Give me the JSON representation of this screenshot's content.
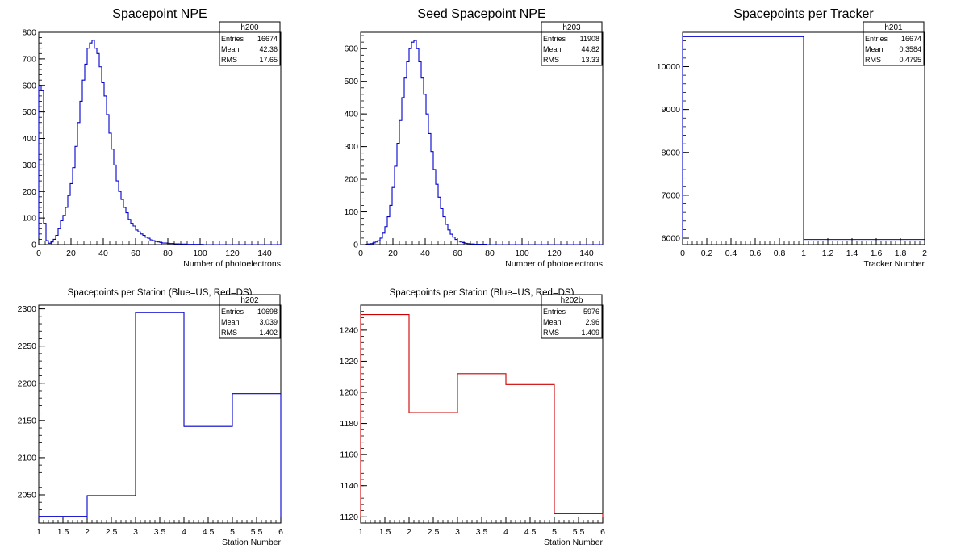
{
  "chart_data": [
    {
      "type": "histogram",
      "title": "Spacepoint NPE",
      "xlabel": "Number of photoelectrons",
      "ylabel": "",
      "xlim": [
        0,
        150
      ],
      "ylim": [
        0,
        800
      ],
      "xticks": [
        "0",
        "20",
        "40",
        "60",
        "80",
        "100",
        "120",
        "140"
      ],
      "yticks": [
        "0",
        "100",
        "200",
        "300",
        "400",
        "500",
        "600",
        "700",
        "800"
      ],
      "line_color": "#0000cc",
      "stats": {
        "name": "h200",
        "rows": [
          [
            "Entries",
            "16674"
          ],
          [
            "Mean",
            "42.36"
          ],
          [
            "RMS",
            "17.65"
          ]
        ]
      },
      "bin_width": 1.5,
      "values": [
        600,
        580,
        80,
        15,
        5,
        10,
        20,
        35,
        60,
        90,
        110,
        140,
        185,
        230,
        290,
        370,
        460,
        540,
        620,
        680,
        740,
        760,
        770,
        740,
        720,
        670,
        610,
        560,
        490,
        420,
        360,
        300,
        240,
        200,
        170,
        140,
        120,
        95,
        80,
        70,
        55,
        48,
        40,
        35,
        28,
        24,
        18,
        15,
        12,
        10,
        8,
        6,
        6,
        5,
        4,
        4,
        3,
        3,
        2,
        2,
        2,
        1,
        1,
        1,
        1,
        1,
        1,
        1,
        0,
        0,
        0,
        0,
        0,
        0,
        0,
        0,
        0,
        0,
        0,
        0,
        0,
        0,
        0,
        0,
        0,
        0,
        0,
        0,
        0,
        0,
        0,
        0,
        0,
        0,
        0,
        0,
        0,
        0,
        0,
        0
      ]
    },
    {
      "type": "histogram",
      "title": "Seed Spacepoint NPE",
      "xlabel": "Number of photoelectrons",
      "ylabel": "",
      "xlim": [
        0,
        150
      ],
      "ylim": [
        0,
        650
      ],
      "xticks": [
        "0",
        "20",
        "40",
        "60",
        "80",
        "100",
        "120",
        "140"
      ],
      "yticks": [
        "0",
        "100",
        "200",
        "300",
        "400",
        "500",
        "600"
      ],
      "line_color": "#0000cc",
      "stats": {
        "name": "h203",
        "rows": [
          [
            "Entries",
            "11908"
          ],
          [
            "Mean",
            "44.82"
          ],
          [
            "RMS",
            "13.33"
          ]
        ]
      },
      "bin_width": 1.5,
      "values": [
        0,
        0,
        1,
        2,
        3,
        5,
        8,
        12,
        20,
        35,
        55,
        85,
        120,
        175,
        240,
        310,
        380,
        450,
        510,
        560,
        600,
        620,
        625,
        600,
        560,
        510,
        460,
        400,
        340,
        285,
        230,
        185,
        145,
        110,
        85,
        62,
        45,
        32,
        23,
        16,
        11,
        8,
        6,
        4,
        3,
        2,
        2,
        1,
        1,
        1,
        1,
        1,
        0,
        0,
        0,
        0,
        0,
        0,
        0,
        0,
        0,
        0,
        0,
        0,
        0,
        0,
        0,
        0,
        0,
        0,
        0,
        0,
        0,
        0,
        0,
        0,
        0,
        0,
        0,
        0,
        0,
        0,
        0,
        0,
        0,
        0,
        0,
        0,
        0,
        0,
        0,
        0,
        0,
        0,
        0,
        0,
        0,
        0,
        0,
        0
      ]
    },
    {
      "type": "histogram",
      "title": "Spacepoints per Tracker",
      "xlabel": "Tracker Number",
      "ylabel": "",
      "xlim": [
        0,
        2
      ],
      "ylim": [
        5850,
        10800
      ],
      "xticks": [
        "0",
        "0.2",
        "0.4",
        "0.6",
        "0.8",
        "1",
        "1.2",
        "1.4",
        "1.6",
        "1.8",
        "2"
      ],
      "yticks": [
        "6000",
        "7000",
        "8000",
        "9000",
        "10000"
      ],
      "line_color": "#0000cc",
      "stats": {
        "name": "h201",
        "rows": [
          [
            "Entries",
            "16674"
          ],
          [
            "Mean",
            "0.3584"
          ],
          [
            "RMS",
            "0.4795"
          ]
        ]
      },
      "bin_width": 1,
      "values": [
        10700,
        5970
      ]
    },
    {
      "type": "histogram",
      "title": "Spacepoints per Station (Blue=US, Red=DS)",
      "xlabel": "Station Number",
      "ylabel": "",
      "xlim": [
        1,
        6
      ],
      "ylim": [
        2012,
        2305
      ],
      "xticks": [
        "1",
        "1.5",
        "2",
        "2.5",
        "3",
        "3.5",
        "4",
        "4.5",
        "5",
        "5.5",
        "6"
      ],
      "yticks": [
        "2050",
        "2100",
        "2150",
        "2200",
        "2250",
        "2300"
      ],
      "line_color": "#0000cc",
      "stats": {
        "name": "h202",
        "rows": [
          [
            "Entries",
            "10698"
          ],
          [
            "Mean",
            "3.039"
          ],
          [
            "RMS",
            "1.402"
          ]
        ]
      },
      "bin_width": 1,
      "values": [
        2021,
        2049,
        2295,
        2142,
        2186
      ]
    },
    {
      "type": "histogram",
      "title": "Spacepoints per Station (Blue=US, Red=DS)",
      "xlabel": "Station Number",
      "ylabel": "",
      "xlim": [
        1,
        6
      ],
      "ylim": [
        1116,
        1256
      ],
      "xticks": [
        "1",
        "1.5",
        "2",
        "2.5",
        "3",
        "3.5",
        "4",
        "4.5",
        "5",
        "5.5",
        "6"
      ],
      "yticks": [
        "1120",
        "1140",
        "1160",
        "1180",
        "1200",
        "1220",
        "1240"
      ],
      "line_color": "#cc0000",
      "stats": {
        "name": "h202b",
        "rows": [
          [
            "Entries",
            "5976"
          ],
          [
            "Mean",
            "2.96"
          ],
          [
            "RMS",
            "1.409"
          ]
        ]
      },
      "bin_width": 1,
      "values": [
        1250,
        1187,
        1212,
        1205,
        1122
      ]
    }
  ]
}
